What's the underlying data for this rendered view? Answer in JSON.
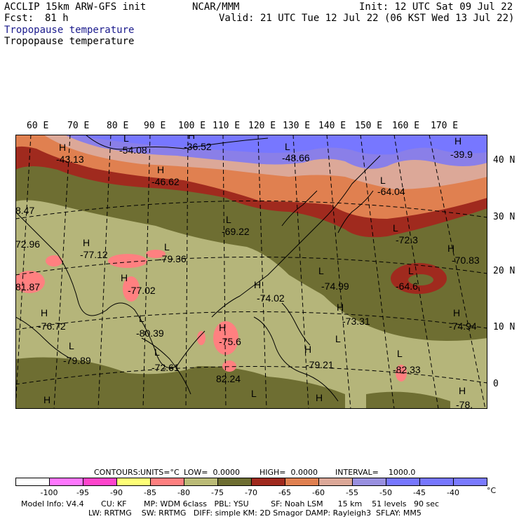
{
  "header": {
    "model_line": "ACCLIP 15km ARW-GFS init",
    "center": "NCAR/MMM",
    "init": "Init: 12 UTC Sat 09 Jul 22",
    "fcst_label": "Fcst:",
    "fcst_value": "81 h",
    "valid": "Valid: 21 UTC Tue 12 Jul 22 (06 KST Wed 13 Jul 22)",
    "field_title_1": "Tropopause temperature",
    "field_title_2": "Tropopause temperature",
    "colors": {
      "title_1": "#1a1a8c",
      "title_2": "#000000"
    }
  },
  "axes": {
    "longitude_labels": [
      "60 E",
      "70 E",
      "80 E",
      "90 E",
      "100 E",
      "110 E",
      "120 E",
      "130 E",
      "140 E",
      "150 E",
      "160 E",
      "170 E"
    ],
    "latitude_labels": [
      "40 N",
      "30 N",
      "20 N",
      "10 N",
      "0"
    ]
  },
  "map_labels": [
    {
      "kind": "H",
      "text": "H"
    },
    {
      "kind": "value",
      "text": "-43.13"
    },
    {
      "kind": "L",
      "text": "L"
    },
    {
      "kind": "value",
      "text": "-54.08"
    },
    {
      "kind": "H",
      "text": "H"
    },
    {
      "kind": "value",
      "text": "-36.52"
    },
    {
      "kind": "H",
      "text": "H"
    },
    {
      "kind": "value",
      "text": "-46.62"
    },
    {
      "kind": "L",
      "text": "L"
    },
    {
      "kind": "value",
      "text": "-48.66"
    },
    {
      "kind": "H",
      "text": "H"
    },
    {
      "kind": "value",
      "text": "-39.9"
    },
    {
      "kind": "L",
      "text": "L"
    },
    {
      "kind": "value",
      "text": "-64.04"
    },
    {
      "kind": "value",
      "text": "8.47"
    },
    {
      "kind": "L",
      "text": "L"
    },
    {
      "kind": "value",
      "text": "-69.22"
    },
    {
      "kind": "L",
      "text": "L"
    },
    {
      "kind": "value",
      "text": "-72.3"
    },
    {
      "kind": "value",
      "text": "72.96"
    },
    {
      "kind": "H",
      "text": "H"
    },
    {
      "kind": "value",
      "text": "-77.12"
    },
    {
      "kind": "L",
      "text": "L"
    },
    {
      "kind": "value",
      "text": "-79.36"
    },
    {
      "kind": "H",
      "text": "H"
    },
    {
      "kind": "value",
      "text": "-70.83"
    },
    {
      "kind": "L",
      "text": "L"
    },
    {
      "kind": "value",
      "text": "-74.99"
    },
    {
      "kind": "L",
      "text": "L"
    },
    {
      "kind": "value",
      "text": "-64.6"
    },
    {
      "kind": "value",
      "text": "81.87"
    },
    {
      "kind": "H",
      "text": "H"
    },
    {
      "kind": "value",
      "text": "-77.02"
    },
    {
      "kind": "H",
      "text": "H"
    },
    {
      "kind": "value",
      "text": "-74.02"
    },
    {
      "kind": "H",
      "text": "H"
    },
    {
      "kind": "value",
      "text": "-73.31"
    },
    {
      "kind": "H",
      "text": "H"
    },
    {
      "kind": "value",
      "text": "-74.94"
    },
    {
      "kind": "H",
      "text": "H"
    },
    {
      "kind": "value",
      "text": "-76.72"
    },
    {
      "kind": "L",
      "text": "L"
    },
    {
      "kind": "value",
      "text": "-80.39"
    },
    {
      "kind": "H",
      "text": "H"
    },
    {
      "kind": "value",
      "text": "-75.6"
    },
    {
      "kind": "L",
      "text": "L"
    },
    {
      "kind": "value",
      "text": "-79.89"
    },
    {
      "kind": "L",
      "text": "L"
    },
    {
      "kind": "value",
      "text": "-72.61"
    },
    {
      "kind": "H",
      "text": "H"
    },
    {
      "kind": "value",
      "text": "-79.21"
    },
    {
      "kind": "L",
      "text": "L"
    },
    {
      "kind": "value",
      "text": "-82.33"
    },
    {
      "kind": "value",
      "text": "82.24"
    },
    {
      "kind": "H",
      "text": "H"
    },
    {
      "kind": "value",
      "text": "-78."
    },
    {
      "kind": "H",
      "text": "H"
    },
    {
      "kind": "H",
      "text": "H"
    },
    {
      "kind": "L",
      "text": "L"
    },
    {
      "kind": "L",
      "text": "L"
    }
  ],
  "contour_info": {
    "contours": "CONTOURS:",
    "units": "UNITS=°C",
    "low": "LOW=  0.0000",
    "high": "HIGH=  0.0000",
    "interval": "INTERVAL=    1000.0"
  },
  "colorbar": {
    "labels": [
      "-100",
      "-95",
      "-90",
      "-85",
      "-80",
      "-75",
      "-70",
      "-65",
      "-60",
      "-55",
      "-50",
      "-45",
      "-40"
    ],
    "unit": "°C",
    "colors": [
      "#ffffff",
      "#ff77ff",
      "#ff44cc",
      "#ffff77",
      "#ff8080",
      "#bbbb77",
      "#6e6e32",
      "#a02a1e",
      "#e08050",
      "#dca898",
      "#9990e0",
      "#7777ff",
      "#7777ff",
      "#7a7aff"
    ]
  },
  "model_info": {
    "line1": "Model Info: V4.4       CU: KF       MP: WDM 6class   PBL: YSU         SF: Noah LSM      15 km    51 levels   90 sec",
    "line2": "LW: RRTMG    SW: RRTMG   DIFF: simple KM: 2D Smagor DAMP: Rayleigh3  SFLAY: MM5"
  },
  "palette": {
    "band_violet": "#8a7fe8",
    "band_pink": "#dca898",
    "band_orange": "#e08050",
    "band_red": "#a02a1e",
    "band_dark_olive": "#6e6e32",
    "band_olive": "#b5b57a",
    "spot_salmon": "#ff8080",
    "coast": "#000000"
  }
}
